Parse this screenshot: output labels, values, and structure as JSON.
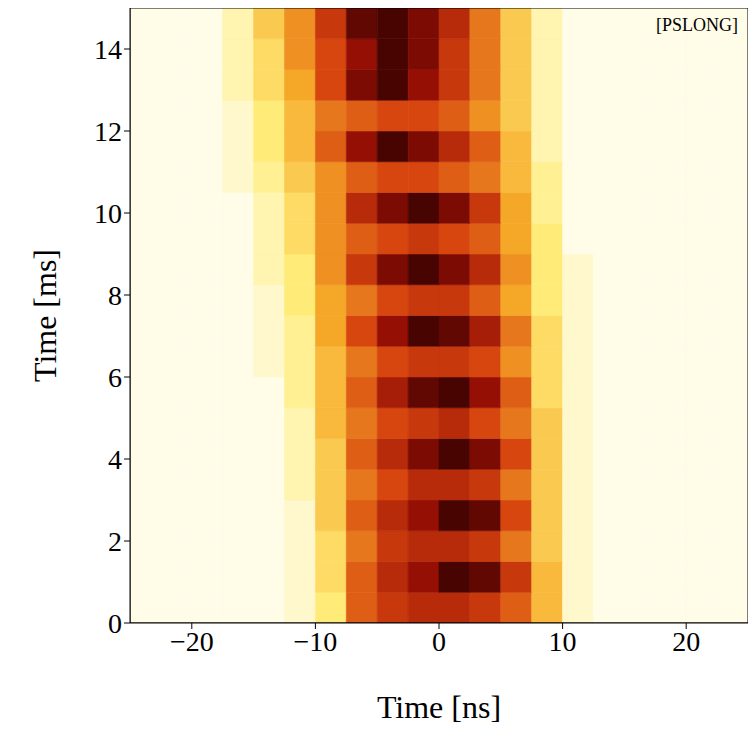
{
  "chart_data": {
    "type": "heatmap",
    "annotation": "[PSLONG]",
    "xlabel": "Time [ns]",
    "ylabel": "Time [ms]",
    "xlim": [
      -25,
      25
    ],
    "ylim": [
      0,
      15
    ],
    "xticks": [
      -20,
      -10,
      0,
      10,
      20
    ],
    "yticks": [
      0,
      2,
      4,
      6,
      8,
      10,
      12,
      14
    ],
    "x_edges": [
      -25,
      -22.5,
      -20,
      -17.5,
      -15,
      -12.5,
      -10,
      -7.5,
      -5,
      -2.5,
      0,
      2.5,
      5,
      7.5,
      10,
      12.5,
      15,
      17.5,
      20,
      22.5,
      25
    ],
    "y_edges": [
      0,
      0.75,
      1.5,
      2.25,
      3,
      3.75,
      4.5,
      5.25,
      6,
      6.75,
      7.5,
      8.25,
      9,
      9.75,
      10.5,
      11.25,
      12,
      12.75,
      13.5,
      14.25,
      15
    ],
    "cells": [
      [
        0,
        0,
        0,
        0,
        0,
        0.05,
        0.2,
        0.55,
        0.65,
        0.7,
        0.7,
        0.65,
        0.55,
        0.35,
        0.05,
        0,
        0,
        0,
        0,
        0
      ],
      [
        0,
        0,
        0,
        0,
        0,
        0.05,
        0.25,
        0.55,
        0.7,
        0.8,
        0.95,
        0.9,
        0.65,
        0.35,
        0.05,
        0,
        0,
        0,
        0,
        0
      ],
      [
        0,
        0,
        0,
        0,
        0,
        0.05,
        0.25,
        0.5,
        0.65,
        0.7,
        0.7,
        0.65,
        0.5,
        0.3,
        0.05,
        0,
        0,
        0,
        0,
        0
      ],
      [
        0,
        0,
        0,
        0,
        0,
        0.05,
        0.3,
        0.55,
        0.7,
        0.8,
        0.95,
        0.9,
        0.6,
        0.3,
        0.05,
        0,
        0,
        0,
        0,
        0
      ],
      [
        0,
        0,
        0,
        0,
        0,
        0.1,
        0.3,
        0.5,
        0.6,
        0.7,
        0.7,
        0.65,
        0.5,
        0.3,
        0.05,
        0,
        0,
        0,
        0,
        0
      ],
      [
        0,
        0,
        0,
        0,
        0,
        0.1,
        0.3,
        0.55,
        0.7,
        0.85,
        0.95,
        0.85,
        0.6,
        0.3,
        0.05,
        0,
        0,
        0,
        0,
        0
      ],
      [
        0,
        0,
        0,
        0,
        0,
        0.1,
        0.35,
        0.5,
        0.6,
        0.65,
        0.7,
        0.6,
        0.5,
        0.3,
        0.05,
        0,
        0,
        0,
        0,
        0
      ],
      [
        0,
        0,
        0,
        0,
        0,
        0.15,
        0.35,
        0.55,
        0.75,
        0.9,
        0.95,
        0.8,
        0.55,
        0.25,
        0.05,
        0,
        0,
        0,
        0,
        0
      ],
      [
        0,
        0,
        0,
        0,
        0.05,
        0.15,
        0.35,
        0.5,
        0.6,
        0.65,
        0.65,
        0.6,
        0.45,
        0.25,
        0.05,
        0,
        0,
        0,
        0,
        0
      ],
      [
        0,
        0,
        0,
        0,
        0.05,
        0.15,
        0.4,
        0.6,
        0.8,
        0.95,
        0.9,
        0.75,
        0.5,
        0.25,
        0.05,
        0,
        0,
        0,
        0,
        0
      ],
      [
        0,
        0,
        0,
        0,
        0.05,
        0.2,
        0.4,
        0.5,
        0.6,
        0.65,
        0.65,
        0.55,
        0.4,
        0.2,
        0.05,
        0,
        0,
        0,
        0,
        0
      ],
      [
        0,
        0,
        0,
        0,
        0.1,
        0.2,
        0.45,
        0.65,
        0.85,
        0.95,
        0.85,
        0.7,
        0.45,
        0.2,
        0.05,
        0,
        0,
        0,
        0,
        0
      ],
      [
        0,
        0,
        0,
        0,
        0.1,
        0.25,
        0.45,
        0.55,
        0.6,
        0.65,
        0.6,
        0.55,
        0.4,
        0.2,
        0,
        0,
        0,
        0,
        0,
        0
      ],
      [
        0,
        0,
        0,
        0,
        0.1,
        0.25,
        0.45,
        0.7,
        0.85,
        0.95,
        0.85,
        0.65,
        0.4,
        0.15,
        0,
        0,
        0,
        0,
        0,
        0
      ],
      [
        0,
        0,
        0,
        0.05,
        0.15,
        0.3,
        0.45,
        0.55,
        0.6,
        0.6,
        0.55,
        0.5,
        0.35,
        0.15,
        0,
        0,
        0,
        0,
        0,
        0
      ],
      [
        0,
        0,
        0,
        0.05,
        0.2,
        0.35,
        0.55,
        0.8,
        0.95,
        0.85,
        0.7,
        0.55,
        0.35,
        0.1,
        0,
        0,
        0,
        0,
        0,
        0
      ],
      [
        0,
        0,
        0,
        0.05,
        0.2,
        0.35,
        0.5,
        0.55,
        0.6,
        0.6,
        0.55,
        0.45,
        0.3,
        0.1,
        0,
        0,
        0,
        0,
        0,
        0
      ],
      [
        0,
        0,
        0,
        0.1,
        0.25,
        0.4,
        0.6,
        0.85,
        0.95,
        0.8,
        0.65,
        0.5,
        0.3,
        0.1,
        0,
        0,
        0,
        0,
        0,
        0
      ],
      [
        0,
        0,
        0,
        0.1,
        0.25,
        0.45,
        0.6,
        0.8,
        0.95,
        0.85,
        0.65,
        0.5,
        0.3,
        0.1,
        0,
        0,
        0,
        0,
        0,
        0
      ],
      [
        0,
        0,
        0,
        0.1,
        0.3,
        0.45,
        0.65,
        0.9,
        0.95,
        0.85,
        0.7,
        0.5,
        0.3,
        0.1,
        0,
        0,
        0,
        0,
        0,
        0
      ]
    ]
  }
}
